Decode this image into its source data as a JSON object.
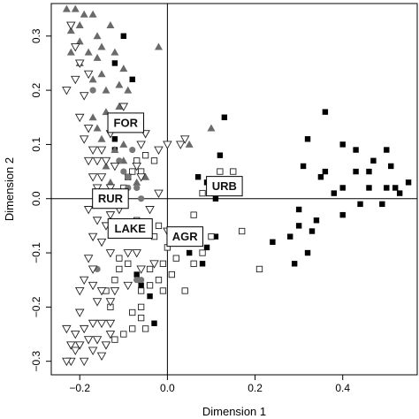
{
  "chart_data": {
    "type": "scatter",
    "xlabel": "Dimension 1",
    "ylabel": "Dimension 2",
    "xlim": [
      -0.265,
      0.57
    ],
    "ylim": [
      -0.325,
      0.36
    ],
    "x_ticks": [
      -0.2,
      0.0,
      0.2,
      0.4
    ],
    "y_ticks": [
      -0.3,
      -0.2,
      -0.1,
      0.0,
      0.1,
      0.2,
      0.3
    ],
    "x_tick_labels": [
      "−0.2",
      "0.0",
      "0.2",
      "0.4"
    ],
    "y_tick_labels": [
      "−0.3",
      "−0.2",
      "−0.1",
      "0.0",
      "0.1",
      "0.2",
      "0.3"
    ],
    "reference_lines": {
      "x": 0,
      "y": 0
    },
    "colors": {
      "filled_square": "#000000",
      "open_square": "#ffffff",
      "triangle": "#6a6a6a",
      "circle": "#777777",
      "open_triangle": "#ffffff",
      "stroke": "#222222"
    },
    "group_labels": [
      {
        "text": "FOR",
        "x": -0.095,
        "y": 0.14
      },
      {
        "text": "RUR",
        "x": -0.13,
        "y": 0.0
      },
      {
        "text": "LAKE",
        "x": -0.085,
        "y": -0.055
      },
      {
        "text": "AGR",
        "x": 0.04,
        "y": -0.07
      },
      {
        "text": "URB",
        "x": 0.13,
        "y": 0.023
      }
    ],
    "series": [
      {
        "marker": "filled-square",
        "points": [
          [
            -0.12,
            0.09
          ],
          [
            -0.12,
            0.13
          ],
          [
            -0.12,
            0.11
          ],
          [
            -0.1,
            0.3
          ],
          [
            -0.08,
            0.22
          ],
          [
            -0.12,
            0.25
          ],
          [
            0.13,
            0.15
          ],
          [
            0.12,
            0.08
          ],
          [
            0.09,
            0.03
          ],
          [
            0.07,
            0.04
          ],
          [
            0.11,
            0.0
          ],
          [
            0.36,
            0.16
          ],
          [
            0.32,
            0.11
          ],
          [
            0.4,
            0.1
          ],
          [
            0.43,
            0.09
          ],
          [
            0.47,
            0.07
          ],
          [
            0.5,
            0.09
          ],
          [
            0.51,
            0.06
          ],
          [
            0.43,
            0.05
          ],
          [
            0.36,
            0.05
          ],
          [
            0.31,
            0.06
          ],
          [
            0.35,
            0.04
          ],
          [
            0.38,
            0.01
          ],
          [
            0.4,
            0.02
          ],
          [
            0.46,
            0.02
          ],
          [
            0.5,
            0.02
          ],
          [
            0.52,
            0.02
          ],
          [
            0.53,
            0.01
          ],
          [
            0.55,
            0.03
          ],
          [
            0.49,
            -0.01
          ],
          [
            0.44,
            -0.01
          ],
          [
            0.4,
            -0.03
          ],
          [
            0.34,
            -0.04
          ],
          [
            0.3,
            -0.02
          ],
          [
            0.3,
            -0.05
          ],
          [
            0.32,
            -0.1
          ],
          [
            0.33,
            -0.06
          ],
          [
            0.28,
            -0.07
          ],
          [
            0.29,
            -0.12
          ],
          [
            0.24,
            -0.08
          ],
          [
            0.09,
            -0.09
          ],
          [
            0.04,
            -0.08
          ],
          [
            0.05,
            -0.1
          ],
          [
            0.08,
            -0.12
          ],
          [
            -0.07,
            -0.14
          ],
          [
            -0.06,
            -0.16
          ],
          [
            -0.04,
            -0.18
          ],
          [
            -0.03,
            -0.23
          ],
          [
            0.11,
            -0.07
          ],
          [
            0.46,
            0.05
          ]
        ]
      },
      {
        "marker": "open-square",
        "points": [
          [
            0.15,
            0.05
          ],
          [
            0.12,
            0.05
          ],
          [
            0.11,
            0.03
          ],
          [
            0.1,
            0.02
          ],
          [
            0.08,
            0.01
          ],
          [
            0.17,
            -0.06
          ],
          [
            0.06,
            -0.03
          ],
          [
            0.02,
            -0.07
          ],
          [
            0.0,
            -0.09
          ],
          [
            0.21,
            -0.13
          ],
          [
            0.1,
            -0.07
          ],
          [
            0.08,
            -0.1
          ],
          [
            0.06,
            -0.12
          ],
          [
            0.02,
            -0.11
          ],
          [
            0.01,
            -0.14
          ],
          [
            0.04,
            -0.17
          ],
          [
            -0.01,
            -0.17
          ],
          [
            -0.06,
            -0.2
          ],
          [
            -0.08,
            -0.21
          ],
          [
            -0.06,
            -0.22
          ],
          [
            -0.05,
            -0.24
          ],
          [
            -0.08,
            -0.24
          ],
          [
            -0.1,
            -0.25
          ],
          [
            -0.12,
            -0.26
          ],
          [
            -0.06,
            -0.17
          ],
          [
            -0.04,
            -0.16
          ],
          [
            -0.02,
            -0.15
          ],
          [
            -0.01,
            -0.12
          ],
          [
            -0.04,
            -0.13
          ],
          [
            -0.13,
            -0.2
          ],
          [
            -0.14,
            -0.17
          ],
          [
            -0.12,
            -0.15
          ],
          [
            -0.11,
            -0.13
          ],
          [
            -0.11,
            -0.11
          ],
          [
            -0.09,
            -0.12
          ],
          [
            -0.03,
            -0.07
          ],
          [
            -0.06,
            0.05
          ],
          [
            -0.07,
            0.07
          ],
          [
            -0.05,
            0.08
          ],
          [
            -0.03,
            0.07
          ],
          [
            -0.08,
            0.05
          ],
          [
            -0.09,
            0.04
          ],
          [
            -0.1,
            0.02
          ],
          [
            -0.02,
            -0.05
          ],
          [
            -0.07,
            -0.04
          ]
        ]
      },
      {
        "marker": "filled-triangle",
        "points": [
          [
            -0.23,
            0.35
          ],
          [
            -0.21,
            0.35
          ],
          [
            -0.19,
            0.34
          ],
          [
            -0.17,
            0.34
          ],
          [
            -0.2,
            0.32
          ],
          [
            -0.22,
            0.31
          ],
          [
            -0.2,
            0.29
          ],
          [
            -0.16,
            0.3
          ],
          [
            -0.13,
            0.32
          ],
          [
            -0.15,
            0.28
          ],
          [
            -0.22,
            0.27
          ],
          [
            -0.18,
            0.27
          ],
          [
            -0.2,
            0.25
          ],
          [
            -0.16,
            0.26
          ],
          [
            -0.12,
            0.27
          ],
          [
            -0.15,
            0.23
          ],
          [
            -0.1,
            0.24
          ],
          [
            -0.14,
            0.2
          ],
          [
            -0.17,
            0.22
          ],
          [
            -0.11,
            0.21
          ],
          [
            -0.09,
            0.2
          ],
          [
            -0.02,
            0.28
          ],
          [
            -0.17,
            0.15
          ],
          [
            -0.11,
            0.17
          ],
          [
            -0.14,
            0.16
          ],
          [
            -0.12,
            0.13
          ],
          [
            -0.16,
            0.13
          ],
          [
            -0.15,
            0.11
          ],
          [
            0.1,
            0.13
          ],
          [
            0.05,
            0.1
          ],
          [
            -0.12,
            0.09
          ],
          [
            -0.1,
            0.1
          ],
          [
            -0.14,
            0.06
          ],
          [
            -0.1,
            0.07
          ],
          [
            -0.07,
            0.03
          ],
          [
            -0.05,
            0.04
          ],
          [
            -0.13,
            0.03
          ],
          [
            -0.2,
            0.25
          ]
        ]
      },
      {
        "marker": "circle",
        "points": [
          [
            -0.17,
            0.2
          ],
          [
            -0.08,
            0.09
          ],
          [
            -0.11,
            0.07
          ],
          [
            -0.09,
            0.04
          ],
          [
            -0.07,
            0.02
          ],
          [
            -0.06,
            0.0
          ],
          [
            -0.09,
            0.02
          ],
          [
            -0.16,
            -0.13
          ],
          [
            -0.07,
            -0.15
          ],
          [
            -0.06,
            -0.15
          ],
          [
            -0.1,
            0.05
          ]
        ]
      },
      {
        "marker": "open-triangle",
        "points": [
          [
            -0.22,
            0.32
          ],
          [
            -0.21,
            0.28
          ],
          [
            -0.2,
            0.25
          ],
          [
            -0.18,
            0.23
          ],
          [
            -0.21,
            0.22
          ],
          [
            -0.23,
            0.2
          ],
          [
            -0.19,
            0.19
          ],
          [
            -0.2,
            0.15
          ],
          [
            -0.18,
            0.13
          ],
          [
            -0.19,
            0.11
          ],
          [
            -0.17,
            0.09
          ],
          [
            -0.15,
            0.09
          ],
          [
            -0.18,
            0.07
          ],
          [
            -0.16,
            0.07
          ],
          [
            -0.14,
            0.07
          ],
          [
            -0.12,
            0.06
          ],
          [
            -0.15,
            0.04
          ],
          [
            -0.17,
            0.04
          ],
          [
            -0.13,
            0.02
          ],
          [
            -0.16,
            0.02
          ],
          [
            -0.14,
            0.0
          ],
          [
            -0.16,
            -0.01
          ],
          [
            -0.18,
            -0.02
          ],
          [
            -0.11,
            -0.02
          ],
          [
            -0.13,
            -0.03
          ],
          [
            -0.16,
            -0.04
          ],
          [
            -0.14,
            -0.05
          ],
          [
            -0.17,
            -0.07
          ],
          [
            -0.15,
            -0.08
          ],
          [
            -0.13,
            -0.1
          ],
          [
            -0.18,
            -0.11
          ],
          [
            -0.17,
            -0.13
          ],
          [
            -0.19,
            -0.15
          ],
          [
            -0.17,
            -0.16
          ],
          [
            -0.2,
            -0.17
          ],
          [
            -0.15,
            -0.17
          ],
          [
            -0.12,
            -0.17
          ],
          [
            -0.16,
            -0.19
          ],
          [
            -0.13,
            -0.19
          ],
          [
            -0.2,
            -0.21
          ],
          [
            -0.23,
            -0.24
          ],
          [
            -0.21,
            -0.25
          ],
          [
            -0.19,
            -0.24
          ],
          [
            -0.17,
            -0.23
          ],
          [
            -0.15,
            -0.23
          ],
          [
            -0.13,
            -0.23
          ],
          [
            -0.22,
            -0.27
          ],
          [
            -0.2,
            -0.27
          ],
          [
            -0.18,
            -0.26
          ],
          [
            -0.16,
            -0.26
          ],
          [
            -0.14,
            -0.27
          ],
          [
            -0.13,
            -0.25
          ],
          [
            -0.21,
            -0.28
          ],
          [
            -0.17,
            -0.28
          ],
          [
            -0.15,
            -0.29
          ],
          [
            -0.19,
            -0.3
          ],
          [
            -0.22,
            -0.3
          ],
          [
            -0.23,
            -0.3
          ],
          [
            0.0,
            0.1
          ],
          [
            0.03,
            0.1
          ],
          [
            0.04,
            0.11
          ],
          [
            -0.02,
            0.09
          ],
          [
            -0.05,
            0.12
          ],
          [
            -0.06,
            0.1
          ],
          [
            -0.13,
            0.12
          ],
          [
            -0.1,
            0.17
          ],
          [
            -0.07,
            0.06
          ],
          [
            -0.06,
            0.04
          ],
          [
            -0.02,
            0.01
          ],
          [
            0.0,
            -0.06
          ],
          [
            -0.04,
            -0.02
          ],
          [
            -0.07,
            -0.1
          ],
          [
            -0.09,
            -0.1
          ],
          [
            -0.03,
            -0.12
          ],
          [
            -0.06,
            -0.13
          ],
          [
            -0.09,
            -0.16
          ]
        ]
      }
    ]
  }
}
